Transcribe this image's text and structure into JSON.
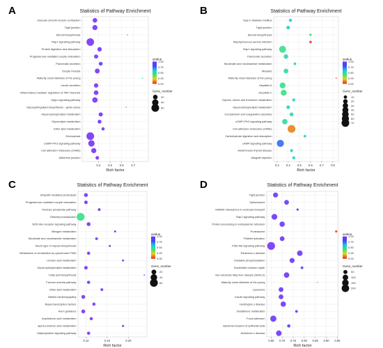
{
  "chart_data": [
    {
      "panel": "A",
      "type": "scatter",
      "title": "Statistics of Pathway Enrichment",
      "xlabel": "Rich factor",
      "xlim": [
        0.26,
        0.83
      ],
      "xticks": [
        0.4,
        0.5,
        0.6,
        0.7
      ],
      "legend": {
        "color_title": "qvalue",
        "color_ticks": [
          "1.00",
          "0.75",
          "0.50",
          "0.25",
          "0.00"
        ],
        "size_title": "Gene_number",
        "size_ticks": [
          20,
          40,
          60
        ],
        "size_range": [
          5,
          62
        ]
      },
      "pathways": [
        "Vascular smooth muscle contraction",
        "Tight junction",
        "Steroid biosynthesis",
        "Rap1 signaling pathway",
        "Protein digestion and absorption",
        "Progesterone-mediated oocyte maturation",
        "Pancreatic secretion",
        "Oocyte meiosis",
        "Maturity onset diabetes of the young",
        "Insulin secretion",
        "Inflammatory mediator regulation of TRP channels",
        "Hippo signaling pathway",
        "Glycosphingolipid biosynthesis - globo series",
        "Glycerophospholipid metabolism",
        "Glycerolipid metabolism",
        "Ether lipid metabolism",
        "Endocytosis",
        "cGMP-PKG signaling pathway",
        "Cell adhesion molecules (CAMs)",
        "Adherens junction"
      ],
      "rich_factor": [
        0.37,
        0.37,
        0.65,
        0.33,
        0.41,
        0.38,
        0.42,
        0.39,
        0.78,
        0.38,
        0.38,
        0.37,
        0.64,
        0.42,
        0.41,
        0.44,
        0.33,
        0.34,
        0.36,
        0.39
      ],
      "qvalue": [
        0.98,
        0.95,
        0.55,
        0.98,
        0.97,
        0.98,
        0.96,
        0.98,
        0.4,
        0.99,
        0.98,
        0.98,
        0.52,
        0.97,
        0.98,
        0.95,
        0.99,
        0.98,
        0.98,
        0.98
      ],
      "gene_number": [
        20,
        25,
        5,
        58,
        18,
        16,
        14,
        22,
        5,
        18,
        20,
        28,
        5,
        16,
        14,
        10,
        60,
        40,
        25,
        12
      ]
    },
    {
      "panel": "B",
      "type": "scatter",
      "title": "Statistics of Pathway Enrichment",
      "xlabel": "Rich factor",
      "xlim": [
        0.27,
        0.85
      ],
      "xticks": [
        0.3,
        0.4,
        0.5,
        0.6,
        0.7,
        0.8
      ],
      "legend": {
        "color_title": "qvalue",
        "color_ticks": [
          "1.00",
          "0.75",
          "0.50",
          "0.25",
          "0.00"
        ],
        "size_title": "Gene_number",
        "size_ticks": [
          10,
          20,
          30,
          40,
          50,
          60,
          70
        ],
        "size_range": [
          3,
          72
        ]
      },
      "pathways": [
        "Type II diabetes mellitus",
        "Tight junction",
        "Steroid biosynthesis",
        "Staphylococcus aureus infection",
        "Rap1 signaling pathway",
        "Pancreatic secretion",
        "Nicotinate and nicotinamide metabolism",
        "Measles",
        "Maturity onset diabetes of the young",
        "Hepatitis A",
        "Hepatitis C",
        "Glycine, serine and threonine metabolism",
        "Glycerophospholipid metabolism",
        "Complement and coagulation cascades",
        "cGMP-PKG signaling pathway",
        "Cell adhesion molecules (CAMs)",
        "Carbohydrate digestion and absorption",
        "cAMP signaling pathway",
        "Autoimmune thyroid disease",
        "Allograft rejection"
      ],
      "rich_factor": [
        0.42,
        0.4,
        0.6,
        0.6,
        0.35,
        0.38,
        0.46,
        0.38,
        0.83,
        0.35,
        0.36,
        0.45,
        0.4,
        0.43,
        0.37,
        0.43,
        0.55,
        0.33,
        0.43,
        0.45
      ],
      "qvalue": [
        0.6,
        0.55,
        0.45,
        0.05,
        0.45,
        0.5,
        0.55,
        0.5,
        0.02,
        0.45,
        0.45,
        0.55,
        0.55,
        0.5,
        0.5,
        0.12,
        0.55,
        0.75,
        0.55,
        0.55
      ],
      "gene_number": [
        8,
        12,
        5,
        6,
        55,
        20,
        6,
        22,
        3,
        38,
        38,
        8,
        12,
        14,
        30,
        72,
        6,
        58,
        8,
        8
      ]
    },
    {
      "panel": "C",
      "type": "scatter",
      "title": "Statistics of Pathway Enrichment",
      "xlabel": "Rich factor",
      "xlim": [
        0.105,
        0.235
      ],
      "xticks": [
        0.12,
        0.16,
        0.2
      ],
      "legend": {
        "color_title": "qvalue",
        "color_ticks": [
          "1.00",
          "0.75",
          "0.50",
          "0.25",
          "0.00"
        ],
        "size_title": "Gene_number",
        "size_ticks": [
          20,
          40,
          60
        ],
        "size_range": [
          3,
          60
        ]
      },
      "pathways": [
        "Ubiquitin mediated proteolysis",
        "Progesterone-mediated oocyte maturation",
        "Pentose phosphate pathway",
        "Olfactory transduction",
        "NOD-like receptor signaling pathway",
        "Nitrogen metabolism",
        "Nicotinate and nicotinamide metabolism",
        "Mucin type O-Glycan biosynthesis",
        "Metabolism of xenobiotics by cytochrome P450",
        "Linoleic acid metabolism",
        "Glycerophospholipid metabolism",
        "Fatty acid biosynthesis",
        "Fanconi anemia pathway",
        "Ether lipid metabolism",
        "Dilated cardiomyopathy",
        "Basal transcription factors",
        "Axon guidance",
        "Arachidonic acid metabolism",
        "alpha-Linolenic acid metabolism",
        "Adipocytokine signaling pathway"
      ],
      "rich_factor": [
        0.12,
        0.12,
        0.145,
        0.11,
        0.125,
        0.175,
        0.14,
        0.165,
        0.125,
        0.19,
        0.12,
        0.23,
        0.125,
        0.15,
        0.115,
        0.135,
        0.115,
        0.13,
        0.19,
        0.125
      ],
      "qvalue": [
        0.97,
        0.98,
        0.98,
        0.45,
        0.98,
        0.98,
        0.98,
        0.98,
        0.98,
        0.98,
        0.98,
        0.98,
        0.98,
        0.98,
        0.98,
        0.98,
        0.98,
        0.98,
        0.98,
        0.98
      ],
      "gene_number": [
        12,
        10,
        6,
        60,
        12,
        4,
        6,
        4,
        8,
        4,
        10,
        3,
        8,
        6,
        12,
        8,
        12,
        8,
        4,
        8
      ]
    },
    {
      "panel": "D",
      "type": "scatter",
      "title": "Statistics of Pathway Enrichment",
      "xlabel": "Rich factor",
      "xlim": [
        0.63,
        0.955
      ],
      "xticks": [
        0.65,
        0.7,
        0.75,
        0.8,
        0.85,
        0.9,
        0.95
      ],
      "legend": {
        "color_title": "qvalue",
        "color_ticks": [
          "1.00",
          "0.75",
          "0.50",
          "0.25",
          "0.00"
        ],
        "size_title": "Gene_number",
        "size_ticks": [
          50,
          100,
          150,
          200
        ],
        "size_range": [
          10,
          220
        ]
      },
      "pathways": [
        "Tight junction",
        "Spliceosome",
        "SNARE interactions in vesicular transport",
        "Rap1 signaling pathway",
        "Protein processing in endoplasmic reticulum",
        "Proteasome",
        "Platelet activation",
        "PI3K-Akt signaling pathway",
        "Parkinson s disease",
        "Oxidative phosphorylation",
        "Nucleotide excision repair",
        "Non-alcoholic fatty liver disease (NAFLD)",
        "Maturity onset diabetes of the young",
        "Lysosome",
        "Insulin signaling pathway",
        "Huntington s disease",
        "Glutathione metabolism",
        "Focal adhesion",
        "Bacterial invasion of epithelial cells",
        "Alzheimer s disease"
      ],
      "rich_factor": [
        0.67,
        0.72,
        0.77,
        0.665,
        0.7,
        0.945,
        0.7,
        0.65,
        0.78,
        0.745,
        0.79,
        0.72,
        0.86,
        0.695,
        0.695,
        0.705,
        0.765,
        0.66,
        0.73,
        0.685
      ],
      "qvalue": [
        0.95,
        0.95,
        0.95,
        0.95,
        0.95,
        0.05,
        0.95,
        0.98,
        0.95,
        0.95,
        0.9,
        0.95,
        0.4,
        0.95,
        0.95,
        0.95,
        0.9,
        0.95,
        0.92,
        0.95
      ],
      "gene_number": [
        80,
        70,
        15,
        110,
        90,
        15,
        70,
        220,
        100,
        80,
        20,
        100,
        5,
        70,
        70,
        90,
        20,
        130,
        30,
        100
      ]
    }
  ]
}
